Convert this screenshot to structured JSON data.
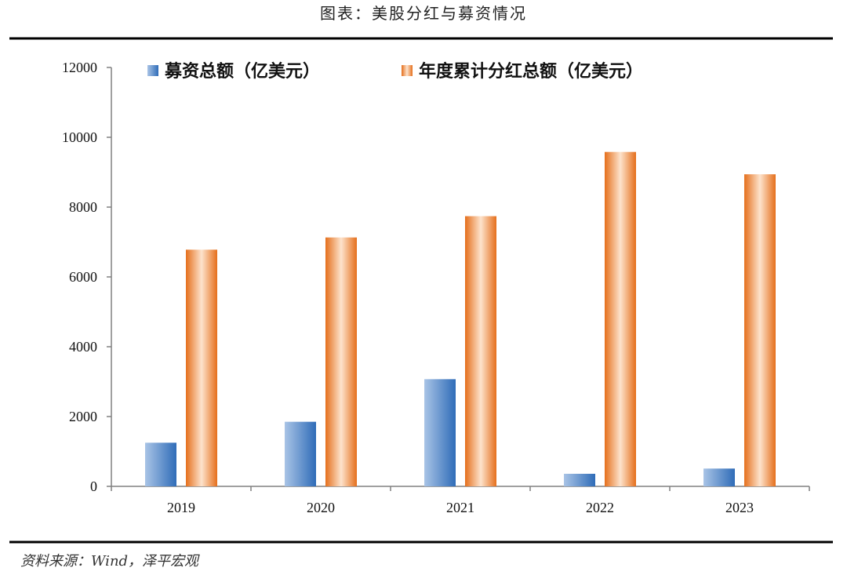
{
  "figure": {
    "title": "图表：美股分红与募资情况",
    "source": "资料来源：Wind，泽平宏观"
  },
  "colors": {
    "fundraising_light": "#a9c4e6",
    "fundraising_dark": "#2f6cb8",
    "dividend_light": "#fde3cc",
    "dividend_dark": "#e56f1c",
    "rule": "#000000",
    "axis": "#808080"
  },
  "chart_data": {
    "type": "bar",
    "categories": [
      "2019",
      "2020",
      "2021",
      "2022",
      "2023"
    ],
    "series": [
      {
        "name": "募资总额（亿美元）",
        "values": [
          1250,
          1850,
          3070,
          360,
          510
        ]
      },
      {
        "name": "年度累计分红总额（亿美元）",
        "values": [
          6780,
          7130,
          7740,
          9580,
          8940
        ]
      }
    ],
    "ylim": [
      0,
      12000
    ],
    "yticks": [
      "0",
      "2000",
      "4000",
      "6000",
      "8000",
      "10000",
      "12000"
    ],
    "grid": false,
    "legend_position": "top"
  }
}
